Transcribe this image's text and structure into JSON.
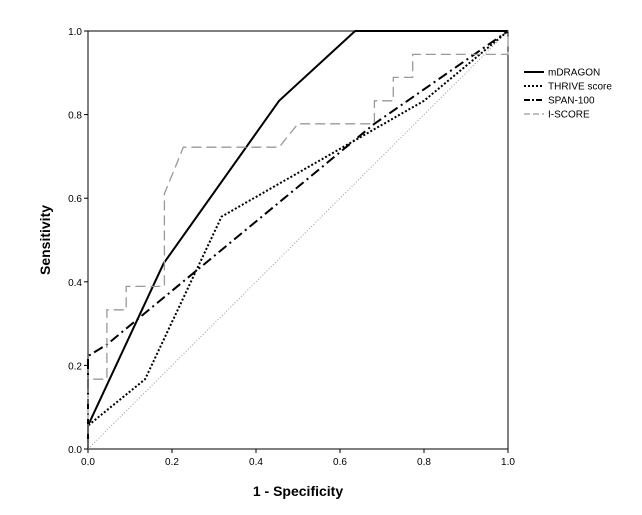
{
  "chart_data": {
    "type": "line",
    "title": "",
    "xlabel": "1 - Specificity",
    "ylabel": "Sensitivity",
    "xlim": [
      0,
      1
    ],
    "ylim": [
      0,
      1
    ],
    "xticks": [
      "0.0",
      "0.2",
      "0.4",
      "0.6",
      "0.8",
      "1.0"
    ],
    "yticks": [
      "0.0",
      "0.2",
      "0.4",
      "0.6",
      "0.8",
      "1.0"
    ],
    "grid": false,
    "legend_position": "right",
    "reference_line": {
      "from": [
        0,
        0
      ],
      "to": [
        1,
        1
      ],
      "color": "#999999",
      "style": "dotted"
    },
    "series": [
      {
        "name": "mDRAGON",
        "color": "#000000",
        "style": "solid",
        "points": [
          [
            0,
            0
          ],
          [
            0,
            0.056
          ],
          [
            0.18,
            0.444
          ],
          [
            0.455,
            0.833
          ],
          [
            0.636,
            1.0
          ],
          [
            1.0,
            1.0
          ]
        ]
      },
      {
        "name": "THRIVE score",
        "color": "#000000",
        "style": "dotted",
        "points": [
          [
            0,
            0
          ],
          [
            0,
            0.056
          ],
          [
            0.136,
            0.167
          ],
          [
            0.318,
            0.556
          ],
          [
            0.8,
            0.833
          ],
          [
            1.0,
            1.0
          ]
        ]
      },
      {
        "name": "SPAN-100",
        "color": "#000000",
        "style": "dashdot",
        "points": [
          [
            0,
            0
          ],
          [
            0,
            0.222
          ],
          [
            0.045,
            0.25
          ],
          [
            0.682,
            0.778
          ],
          [
            1.0,
            1.0
          ]
        ]
      },
      {
        "name": "I-SCORE",
        "color": "#999999",
        "style": "dashed",
        "points": [
          [
            0,
            0
          ],
          [
            0,
            0.167
          ],
          [
            0.045,
            0.167
          ],
          [
            0.045,
            0.333
          ],
          [
            0.091,
            0.333
          ],
          [
            0.091,
            0.389
          ],
          [
            0.182,
            0.389
          ],
          [
            0.182,
            0.611
          ],
          [
            0.205,
            0.667
          ],
          [
            0.227,
            0.722
          ],
          [
            0.455,
            0.722
          ],
          [
            0.5,
            0.778
          ],
          [
            0.682,
            0.778
          ],
          [
            0.682,
            0.833
          ],
          [
            0.727,
            0.833
          ],
          [
            0.727,
            0.889
          ],
          [
            0.773,
            0.889
          ],
          [
            0.773,
            0.944
          ],
          [
            1.0,
            0.944
          ],
          [
            1.0,
            1.0
          ]
        ]
      }
    ]
  }
}
